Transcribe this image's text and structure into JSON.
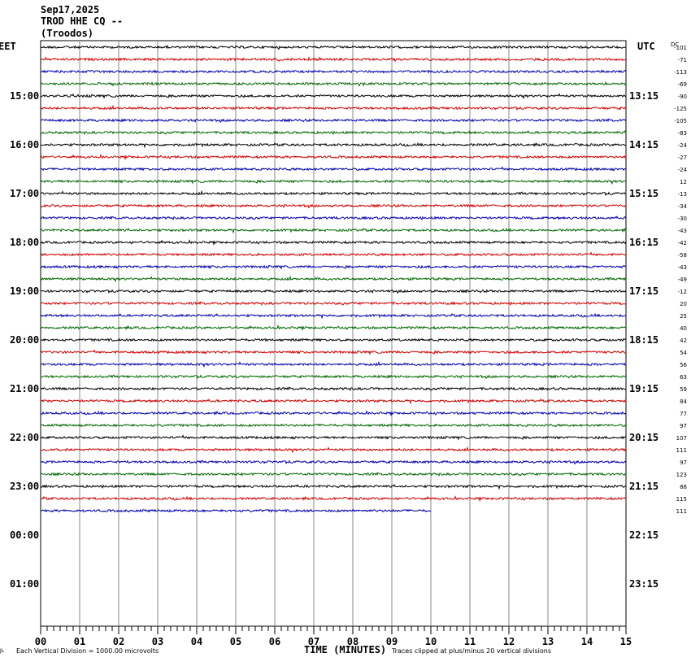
{
  "header": {
    "date": "Sep17,2025",
    "station": "TROD HHE CQ --",
    "location": "(Troodos)"
  },
  "chart_data": {
    "type": "line",
    "title": "Sep17,2025 TROD HHE CQ -- (Troodos)",
    "left_axis_label": "EET",
    "right_axis_label": "UTC",
    "dc_label": "DC",
    "xlabel": "TIME (MINUTES)",
    "x_ticks": [
      "00",
      "01",
      "02",
      "03",
      "04",
      "05",
      "06",
      "07",
      "08",
      "09",
      "10",
      "11",
      "12",
      "13",
      "14",
      "15"
    ],
    "xlim": [
      0,
      15
    ],
    "left_hour_labels": [
      "15:00",
      "16:00",
      "17:00",
      "18:00",
      "19:00",
      "20:00",
      "21:00",
      "22:00",
      "23:00",
      "00:00",
      "01:00"
    ],
    "right_hour_labels": [
      "13:15",
      "14:15",
      "15:15",
      "16:15",
      "17:15",
      "18:15",
      "19:15",
      "20:15",
      "21:15",
      "22:15",
      "23:15"
    ],
    "trace_colors": [
      "#000000",
      "#cc0000",
      "#0000aa",
      "#006600"
    ],
    "dc_offsets": [
      -101,
      -71,
      -113,
      -69,
      -90,
      -125,
      -105,
      -83,
      -24,
      -27,
      -24,
      12,
      -13,
      -34,
      -30,
      -43,
      -42,
      -58,
      -43,
      -49,
      -12,
      20,
      25,
      40,
      42,
      54,
      56,
      63,
      59,
      84,
      77,
      97,
      107,
      111,
      97,
      123,
      88,
      115,
      111
    ],
    "last_trace_end_minute": 10,
    "footer_left": "Each Vertical Division = 1000.00 microvolts",
    "footer_right": "Traces clipped at plus/minus 20 vertical divisions",
    "corner_mark": "JL"
  }
}
